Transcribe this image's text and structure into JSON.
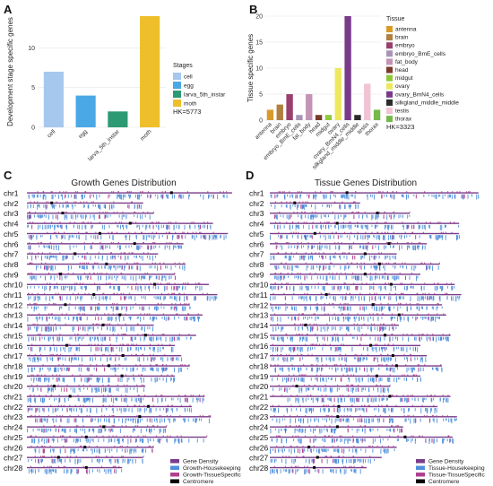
{
  "chart_data": [
    {
      "type": "bar",
      "panel": "A",
      "ylabel": "Development stage specific genes",
      "ylim": [
        0,
        14
      ],
      "yticks": [
        0,
        5,
        10
      ],
      "categories": [
        "cell",
        "egg",
        "larva_5th_instar",
        "moth"
      ],
      "values": [
        7,
        4,
        2,
        14
      ],
      "colors": [
        "#a6c8ee",
        "#4aa8e6",
        "#2e9a73",
        "#eebf2a"
      ],
      "legend": {
        "title": "Stages",
        "position": "right",
        "items": [
          "cell",
          "egg",
          "larva_5th_instar",
          "moth"
        ]
      },
      "annotation": "HK=5773"
    },
    {
      "type": "bar",
      "panel": "B",
      "ylabel": "Tissue specific genes",
      "ylim": [
        0,
        20
      ],
      "yticks": [
        0,
        5,
        10,
        15,
        20
      ],
      "categories": [
        "antenna",
        "brain",
        "embryo",
        "embryo_BmE_cells",
        "fat_body",
        "head",
        "midgut",
        "ovary",
        "ovary_BmN4_cells",
        "silkgland_middle_middle",
        "testis",
        "thorax"
      ],
      "values": [
        2,
        3,
        5,
        1,
        5,
        1,
        1,
        10,
        20,
        1,
        7,
        2
      ],
      "colors": [
        "#d99a2a",
        "#b08040",
        "#9b3f6e",
        "#a895b5",
        "#c394b5",
        "#7a3a2a",
        "#8fc93a",
        "#ede85e",
        "#7a3a8a",
        "#2b2b2b",
        "#f1c3d5",
        "#76b84a"
      ],
      "legend": {
        "title": "Tissue",
        "position": "right",
        "items": [
          "antenna",
          "brain",
          "embryo",
          "embryo_BmE_cells",
          "fat_body",
          "head",
          "midgut",
          "ovary",
          "ovary_BmN4_cells",
          "silkgland_middle_middle",
          "testis",
          "thorax"
        ]
      },
      "annotation": "HK=3323"
    },
    {
      "type": "ideogram",
      "panel": "C",
      "title": "Growth Genes Distribution",
      "chromosomes": [
        "chr1",
        "chr2",
        "chr3",
        "chr4",
        "chr5",
        "chr6",
        "chr7",
        "chr8",
        "chr9",
        "chr10",
        "chr11",
        "chr12",
        "chr13",
        "chr14",
        "chr15",
        "chr16",
        "chr17",
        "chr18",
        "chr19",
        "chr20",
        "chr21",
        "chr22",
        "chr23",
        "chr24",
        "chr25",
        "chr26",
        "chr27",
        "chr28"
      ],
      "relative_lengths": [
        0.97,
        0.55,
        0.6,
        0.88,
        0.95,
        0.74,
        0.62,
        0.75,
        0.7,
        0.86,
        0.9,
        0.77,
        0.83,
        0.6,
        0.8,
        0.7,
        0.73,
        0.77,
        0.7,
        0.56,
        0.84,
        0.78,
        0.87,
        0.66,
        0.85,
        0.6,
        0.55,
        0.45
      ],
      "legend": [
        "Gene Density",
        "Growth-Housekeeping",
        "Growth-TissueSpecific",
        "Centromere"
      ],
      "legend_colors": [
        "#7a3d8a",
        "#4f8fdc",
        "#b0408f",
        "#000000"
      ]
    },
    {
      "type": "ideogram",
      "panel": "D",
      "title": "Tissue Genes Distribution",
      "chromosomes": [
        "chr1",
        "chr2",
        "chr3",
        "chr4",
        "chr5",
        "chr6",
        "chr7",
        "chr8",
        "chr9",
        "chr10",
        "chr11",
        "chr12",
        "chr13",
        "chr14",
        "chr15",
        "chr16",
        "chr17",
        "chr18",
        "chr19",
        "chr20",
        "chr21",
        "chr22",
        "chr23",
        "chr24",
        "chr25",
        "chr26",
        "chr27",
        "chr28"
      ],
      "relative_lengths": [
        0.97,
        0.42,
        0.65,
        0.88,
        0.88,
        0.73,
        0.59,
        0.79,
        0.7,
        0.86,
        0.89,
        0.8,
        0.82,
        0.6,
        0.84,
        0.7,
        0.73,
        0.8,
        0.7,
        0.56,
        0.84,
        0.78,
        0.87,
        0.62,
        0.85,
        0.59,
        0.52,
        0.45
      ],
      "legend": [
        "Gene Density",
        "Tissue-Housekeeping",
        "Tissue-TissueSpecific",
        "Centromere"
      ],
      "legend_colors": [
        "#7a3d8a",
        "#4f8fdc",
        "#b0408f",
        "#000000"
      ]
    }
  ]
}
